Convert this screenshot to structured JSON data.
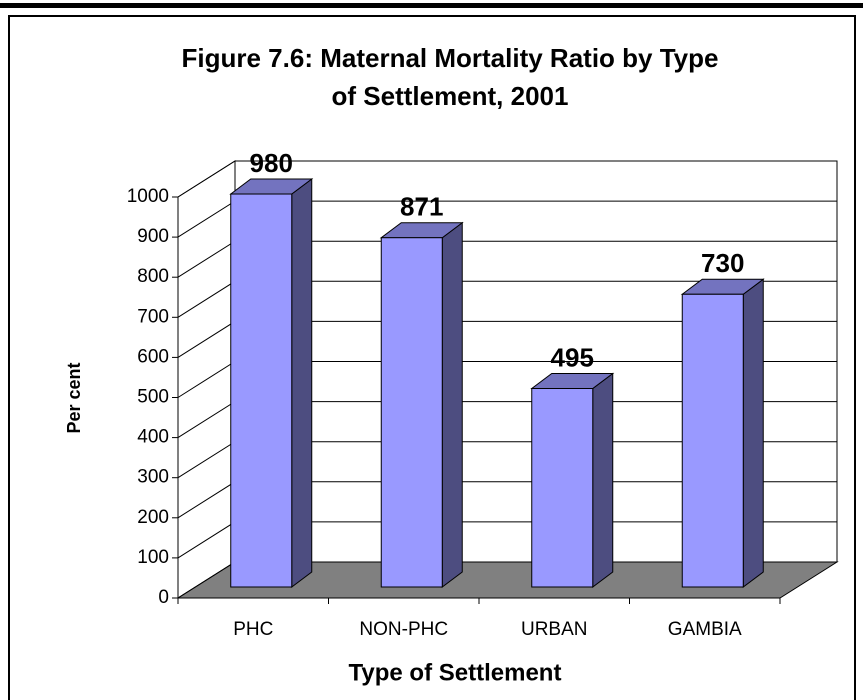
{
  "chart_data": {
    "type": "bar3d",
    "title": "Figure 7.6: Maternal Mortality Ratio by Type of Settlement, 2001",
    "title_lines": [
      "Figure 7.6: Maternal Mortality Ratio by Type",
      "of Settlement, 2001"
    ],
    "x_label": "Type of Settlement",
    "y_label": "Per cent",
    "categories": [
      "PHC",
      "NON-PHC",
      "URBAN",
      "GAMBIA"
    ],
    "values": [
      980,
      871,
      495,
      730
    ],
    "color": "#9999ff",
    "ylim": [
      0,
      1000
    ],
    "yticks": [
      0,
      100,
      200,
      300,
      400,
      500,
      600,
      700,
      800,
      900,
      1000
    ],
    "grid": true
  }
}
